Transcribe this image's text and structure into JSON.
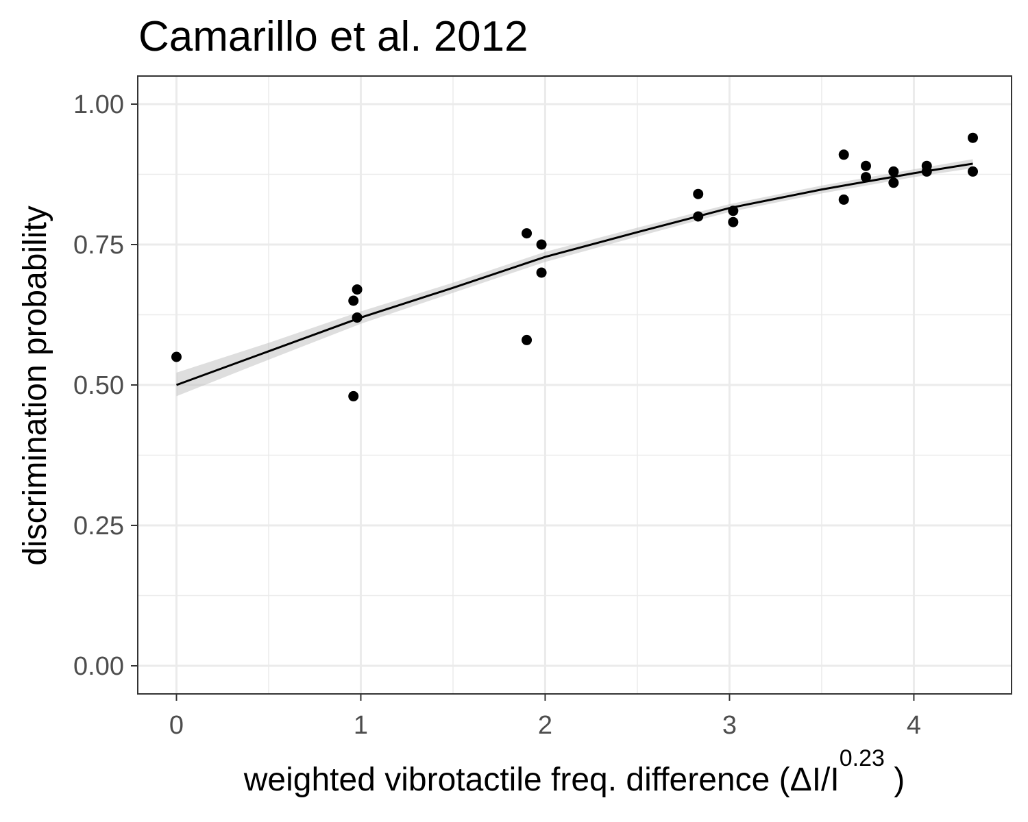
{
  "chart_data": {
    "type": "scatter",
    "title": "Camarillo et al. 2012",
    "xlabel_main": "weighted  vibrotactile freq.  difference (ΔI/I",
    "xlabel_sup": "0.23",
    "xlabel_close": " )",
    "ylabel": "discrimination probability",
    "xlim": [
      -0.21,
      4.53
    ],
    "ylim": [
      -0.05,
      1.05
    ],
    "x_ticks": [
      0,
      1,
      2,
      3,
      4
    ],
    "x_tick_labels": [
      "0",
      "1",
      "2",
      "3",
      "4"
    ],
    "y_ticks": [
      0,
      0.25,
      0.5,
      0.75,
      1.0
    ],
    "y_tick_labels": [
      "0.00",
      "0.25",
      "0.50",
      "0.75",
      "1.00"
    ],
    "grid": true,
    "points": [
      {
        "x": 0.0,
        "y": 0.55
      },
      {
        "x": 0.96,
        "y": 0.48
      },
      {
        "x": 0.96,
        "y": 0.65
      },
      {
        "x": 0.98,
        "y": 0.67
      },
      {
        "x": 0.98,
        "y": 0.62
      },
      {
        "x": 1.9,
        "y": 0.77
      },
      {
        "x": 1.9,
        "y": 0.58
      },
      {
        "x": 1.98,
        "y": 0.75
      },
      {
        "x": 1.98,
        "y": 0.7
      },
      {
        "x": 2.83,
        "y": 0.84
      },
      {
        "x": 2.83,
        "y": 0.8
      },
      {
        "x": 3.02,
        "y": 0.81
      },
      {
        "x": 3.02,
        "y": 0.79
      },
      {
        "x": 3.62,
        "y": 0.91
      },
      {
        "x": 3.62,
        "y": 0.83
      },
      {
        "x": 3.74,
        "y": 0.89
      },
      {
        "x": 3.74,
        "y": 0.87
      },
      {
        "x": 3.89,
        "y": 0.88
      },
      {
        "x": 3.89,
        "y": 0.86
      },
      {
        "x": 4.07,
        "y": 0.89
      },
      {
        "x": 4.07,
        "y": 0.88
      },
      {
        "x": 4.32,
        "y": 0.94
      },
      {
        "x": 4.32,
        "y": 0.88
      }
    ],
    "fit_line": [
      {
        "x": 0.0,
        "y": 0.5
      },
      {
        "x": 0.5,
        "y": 0.56
      },
      {
        "x": 1.0,
        "y": 0.62
      },
      {
        "x": 1.5,
        "y": 0.673
      },
      {
        "x": 2.0,
        "y": 0.728
      },
      {
        "x": 2.5,
        "y": 0.772
      },
      {
        "x": 3.0,
        "y": 0.815
      },
      {
        "x": 3.5,
        "y": 0.848
      },
      {
        "x": 4.0,
        "y": 0.877
      },
      {
        "x": 4.32,
        "y": 0.894
      }
    ],
    "ribbon_lower": [
      0.48,
      0.545,
      0.609,
      0.664,
      0.719,
      0.764,
      0.808,
      0.841,
      0.87,
      0.886
    ],
    "ribbon_upper": [
      0.522,
      0.575,
      0.631,
      0.682,
      0.737,
      0.78,
      0.822,
      0.855,
      0.884,
      0.902
    ]
  }
}
